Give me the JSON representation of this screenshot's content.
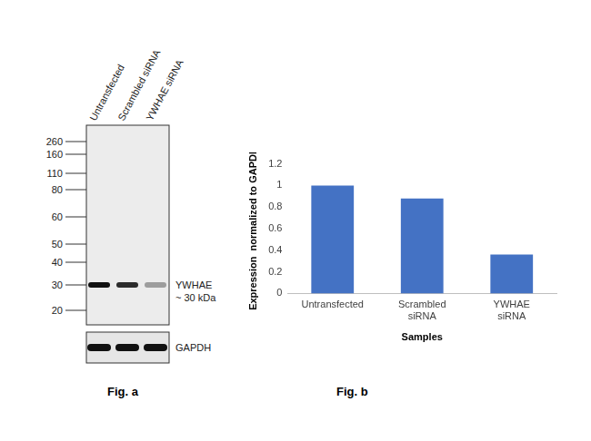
{
  "blot": {
    "lanes": [
      "Untransfected",
      "Scrambled siRNA",
      "YWHAE siRNA"
    ],
    "markers": [
      260,
      160,
      110,
      80,
      60,
      50,
      40,
      30,
      20
    ],
    "band_label": "YWHAE",
    "band_size": "~ 30 kDa",
    "loading_label": "GAPDH",
    "caption": "Fig. a"
  },
  "chart_data": {
    "type": "bar",
    "caption": "Fig. b",
    "categories": [
      "Untransfected",
      "Scrambled siRNA",
      "YWHAE siRNA"
    ],
    "values": [
      1.0,
      0.88,
      0.36
    ],
    "color": "#4472c4",
    "xlabel": "Samples",
    "ylabel": "Expression  normalized to GAPDH",
    "ylim": [
      0,
      1.2
    ],
    "yticks": [
      0,
      0.2,
      0.4,
      0.6,
      0.8,
      1,
      1.2
    ],
    "grid": false
  }
}
